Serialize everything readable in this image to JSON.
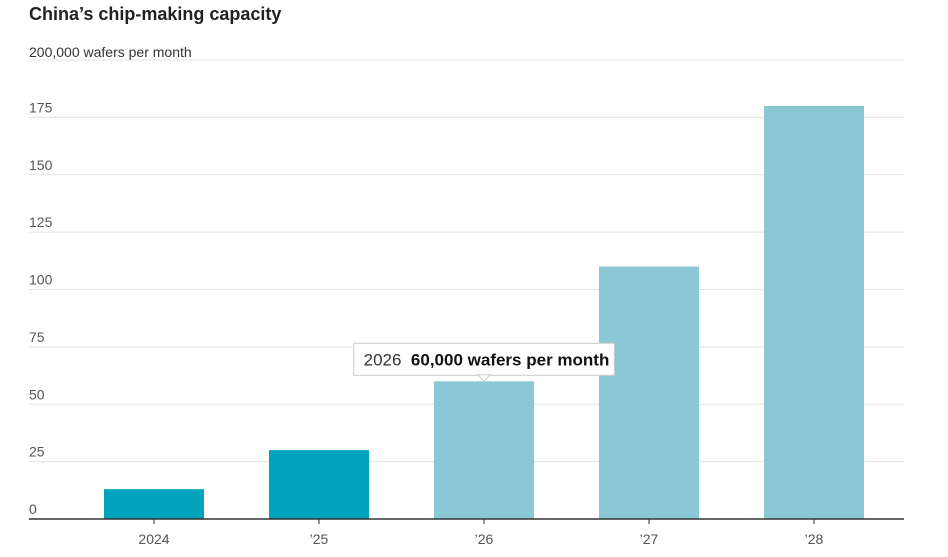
{
  "chart_data": {
    "type": "bar",
    "title": "China’s chip-making capacity",
    "unit_label": "200,000 wafers per month",
    "categories": [
      "2024",
      "’25",
      "’26",
      "’27",
      "’28"
    ],
    "values": [
      13,
      30,
      60,
      110,
      180
    ],
    "ylim": [
      0,
      200
    ],
    "yticks": [
      0,
      25,
      50,
      75,
      100,
      125,
      150,
      175
    ],
    "grid": true,
    "colors": {
      "actual": "#00a3bc",
      "forecast": "#8ac8d6"
    },
    "bar_styles": [
      "actual",
      "actual",
      "forecast",
      "forecast",
      "forecast"
    ],
    "tooltip": {
      "category_index": 2,
      "year": "2026",
      "value_text": "60,000 wafers per month"
    }
  }
}
